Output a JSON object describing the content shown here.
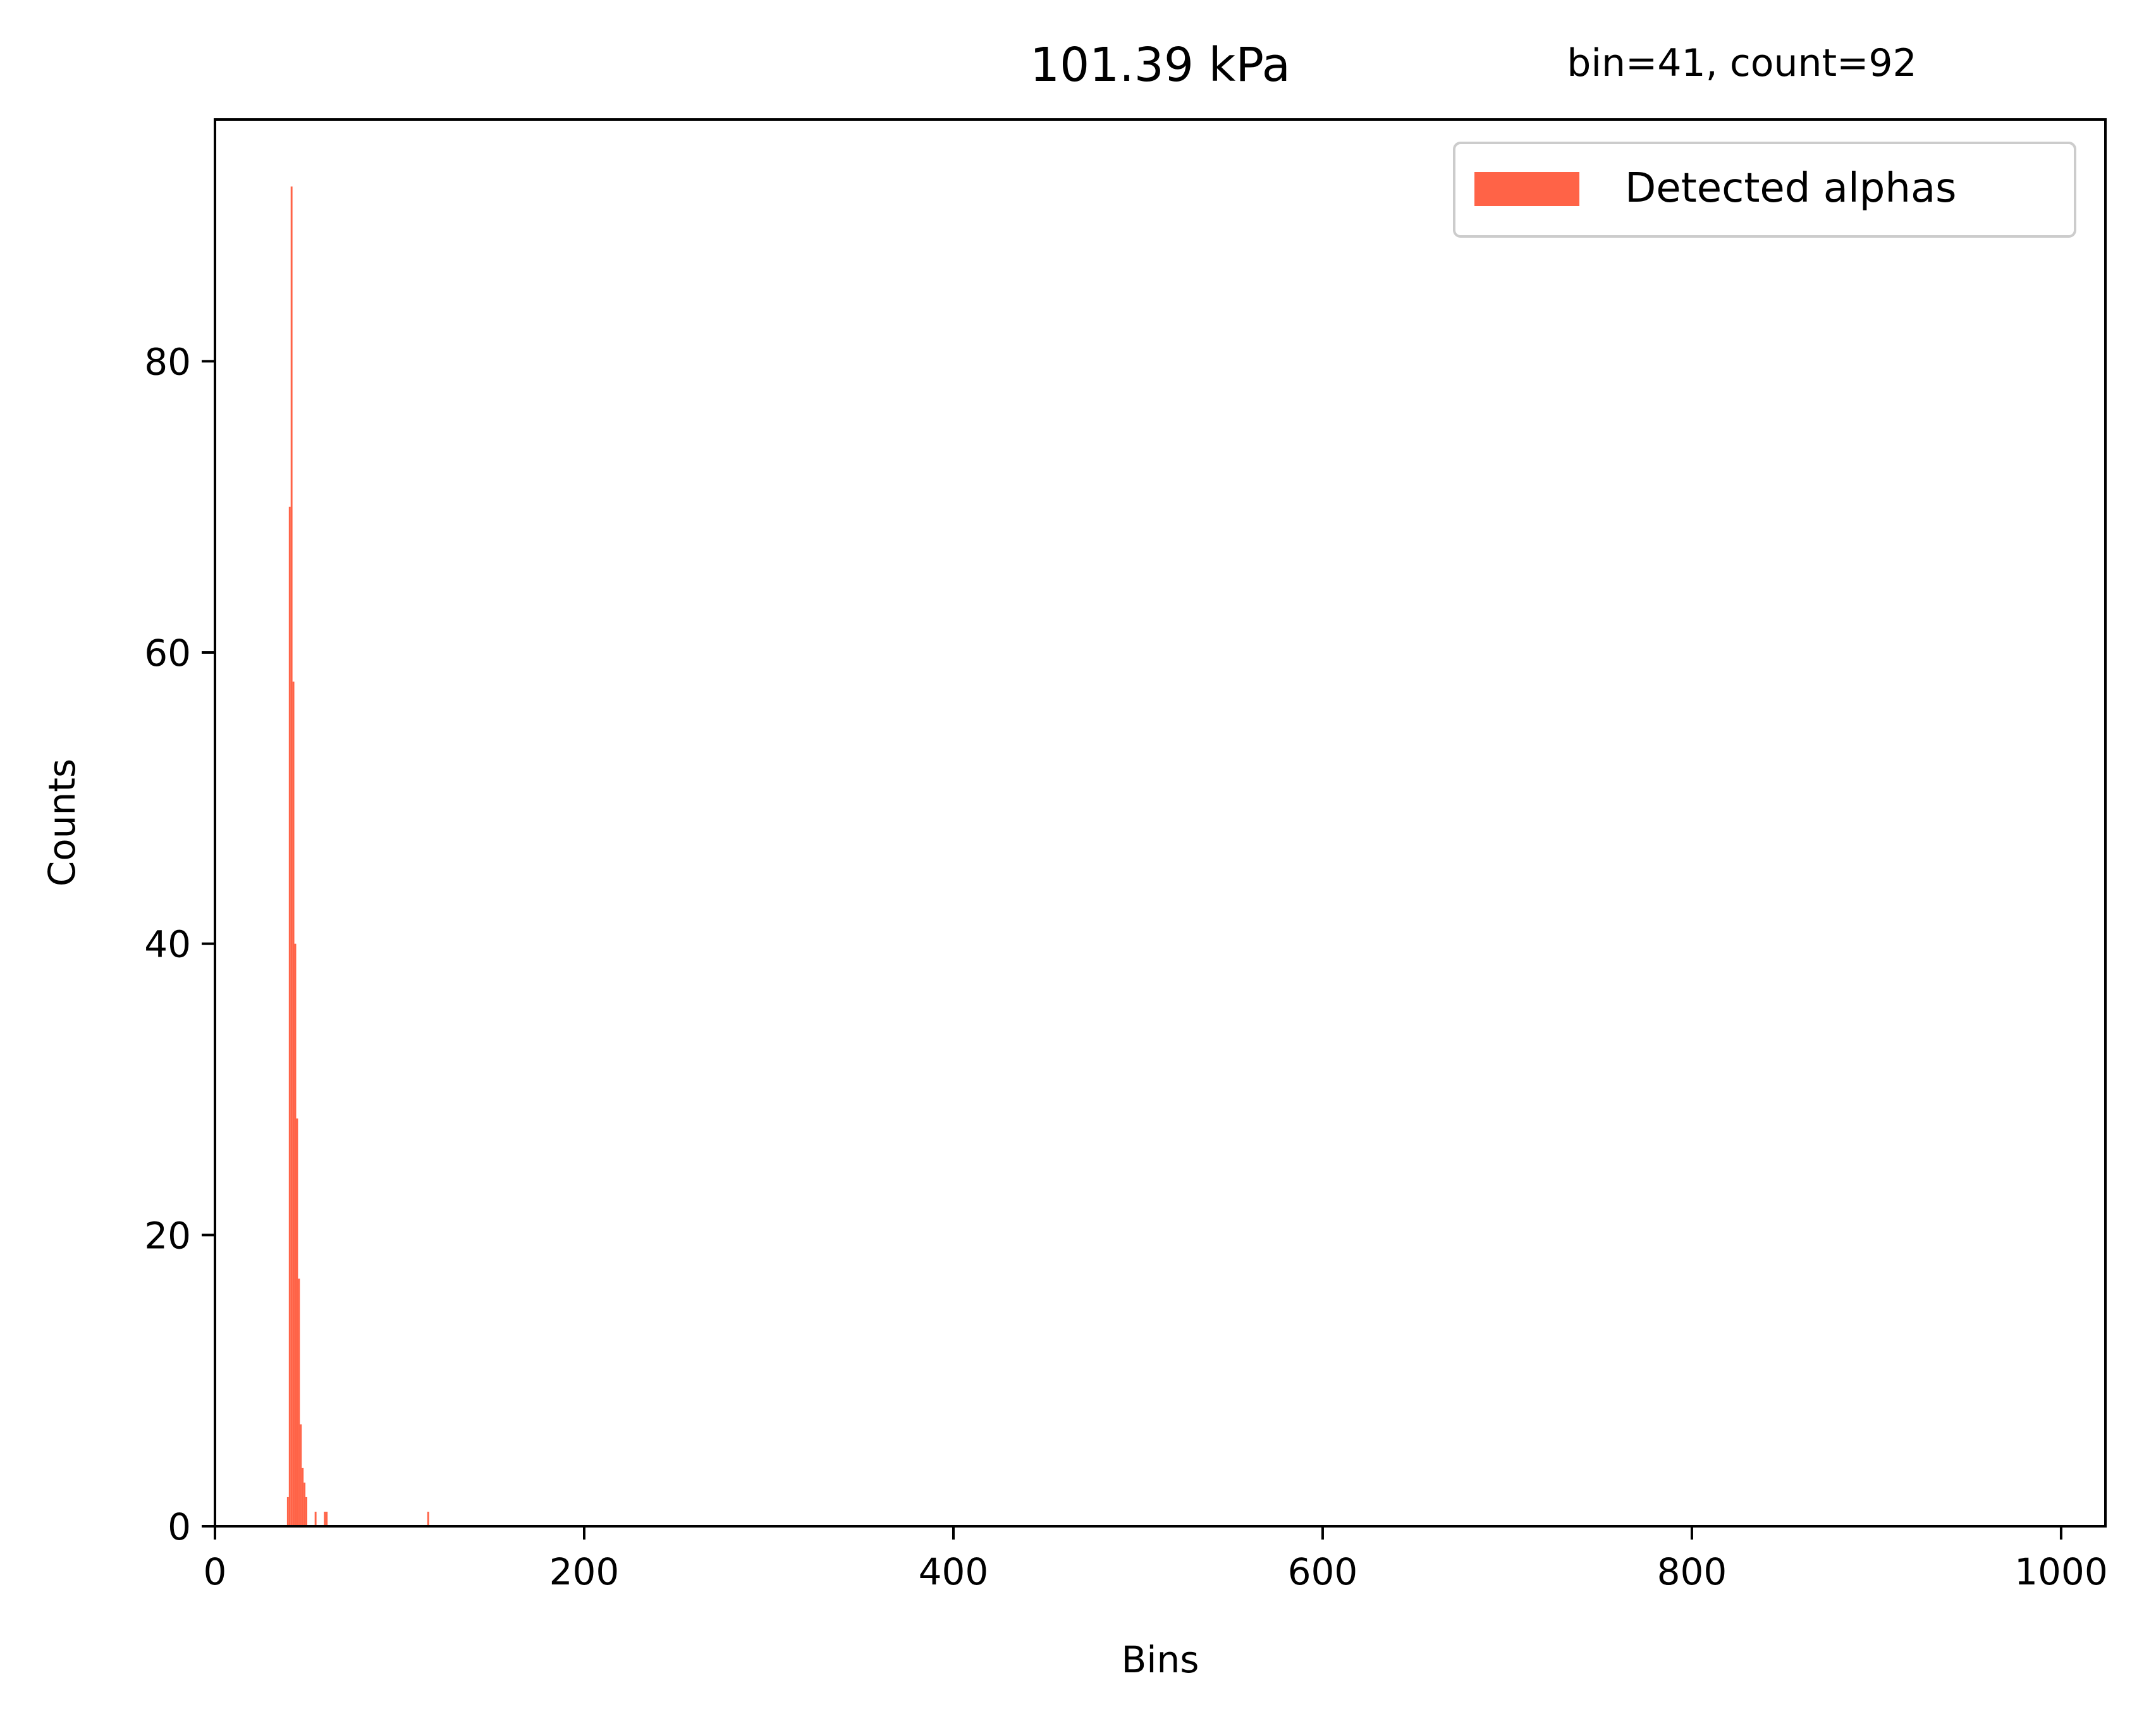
{
  "chart_data": {
    "type": "bar",
    "title": "101.39 kPa",
    "annotation": "bin=41, count=92",
    "xlabel": "Bins",
    "ylabel": "Counts",
    "xlim": [
      0,
      1024
    ],
    "ylim": [
      0,
      96.6
    ],
    "x_ticks": [
      0,
      200,
      400,
      600,
      800,
      1000
    ],
    "y_ticks": [
      0,
      20,
      40,
      60,
      80
    ],
    "grid": false,
    "legend": {
      "position": "top-right",
      "entries": [
        "Detected alphas"
      ]
    },
    "series": [
      {
        "name": "Detected alphas",
        "color": "#ff6347",
        "bins": [
          39,
          40,
          41,
          42,
          43,
          44,
          45,
          46,
          47,
          48,
          49,
          54,
          59,
          60,
          115
        ],
        "values": [
          2,
          70,
          92,
          58,
          40,
          28,
          17,
          7,
          4,
          3,
          2,
          1,
          1,
          1,
          1
        ]
      }
    ]
  }
}
